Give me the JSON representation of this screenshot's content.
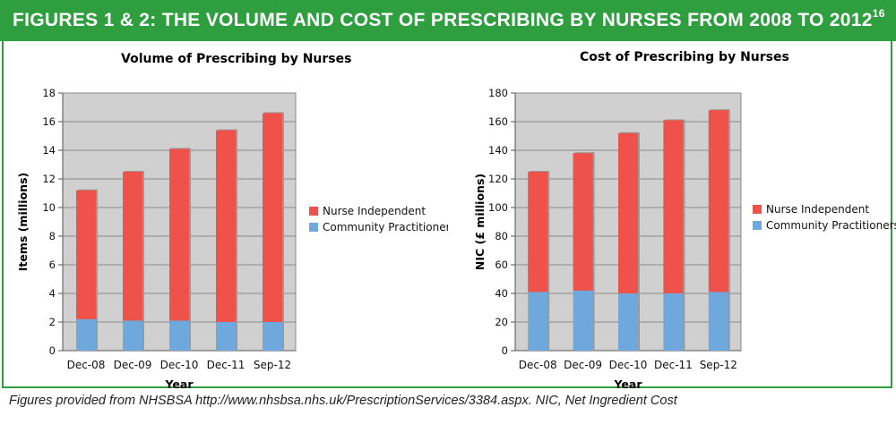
{
  "header": {
    "title": "FIGURES 1 & 2: THE VOLUME AND COST OF PRESCRIBING BY NURSES FROM 2008 TO 2012",
    "superscript": "16"
  },
  "footer": {
    "text": "Figures provided from NHSBSA http://www.nhsbsa.nhs.uk/PrescriptionServices/3384.aspx. NIC, Net Ingredient Cost"
  },
  "colors": {
    "banner": "#2e9e3f",
    "nurse_independent": "#ef524b",
    "community_practitioners": "#6fa8dc",
    "plot_bg": "#d0d0d0"
  },
  "chart_data": [
    {
      "type": "bar",
      "stacked": true,
      "title": "Volume of Prescribing by Nurses",
      "xlabel": "Year",
      "ylabel": "Items (millions)",
      "ylim": [
        0,
        18
      ],
      "yticks": [
        0,
        2,
        4,
        6,
        8,
        10,
        12,
        14,
        16,
        18
      ],
      "categories": [
        "Dec-08",
        "Dec-09",
        "Dec-10",
        "Dec-11",
        "Sep-12"
      ],
      "series": [
        {
          "name": "Community Practitioners",
          "values": [
            2.2,
            2.1,
            2.1,
            2.0,
            2.0
          ]
        },
        {
          "name": "Nurse Independent",
          "values": [
            9.0,
            10.4,
            12.0,
            13.4,
            14.6
          ]
        }
      ],
      "legend": [
        "Nurse Independent",
        "Community Practitioners"
      ],
      "legend_position": "right",
      "grid": true
    },
    {
      "type": "bar",
      "stacked": true,
      "title": "Cost of Prescribing by Nurses",
      "xlabel": "Year",
      "ylabel": "NIC (£ millions)",
      "ylim": [
        0,
        180
      ],
      "yticks": [
        0,
        20,
        40,
        60,
        80,
        100,
        120,
        140,
        160,
        180
      ],
      "categories": [
        "Dec-08",
        "Dec-09",
        "Dec-10",
        "Dec-11",
        "Sep-12"
      ],
      "series": [
        {
          "name": "Community Practitioners",
          "values": [
            41,
            42,
            40,
            40,
            41
          ]
        },
        {
          "name": "Nurse Independent",
          "values": [
            84,
            96,
            112,
            121,
            127
          ]
        }
      ],
      "legend": [
        "Nurse Independent",
        "Community Practitioners"
      ],
      "legend_position": "right",
      "grid": true
    }
  ]
}
